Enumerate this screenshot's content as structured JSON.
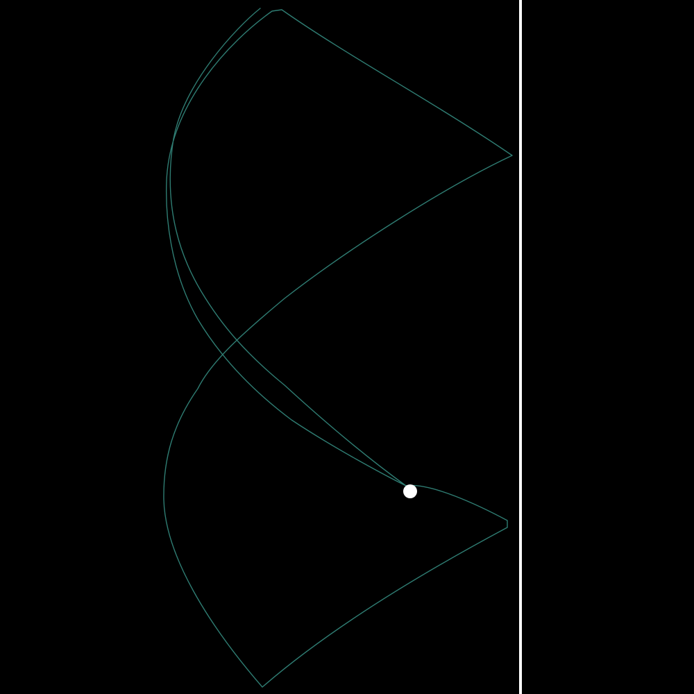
{
  "scene": {
    "background_color": "#000000",
    "trail_color": "#2f7d73",
    "ball_color": "#ffffff",
    "wall_color": "#ffffff",
    "objects": [
      "motion-trail",
      "ball",
      "boundary-wall"
    ]
  }
}
